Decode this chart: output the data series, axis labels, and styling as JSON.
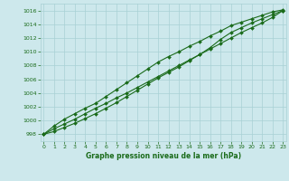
{
  "line1": [
    998.0,
    998.8,
    999.5,
    1000.2,
    1001.0,
    1001.8,
    1002.5,
    1003.3,
    1004.0,
    1004.8,
    1005.6,
    1006.4,
    1007.2,
    1008.0,
    1008.8,
    1009.6,
    1010.4,
    1011.2,
    1012.0,
    1012.8,
    1013.5,
    1014.2,
    1015.0,
    1016.0
  ],
  "line2": [
    998.0,
    999.2,
    1000.2,
    1001.0,
    1001.8,
    1002.5,
    1003.5,
    1004.5,
    1005.5,
    1006.5,
    1007.5,
    1008.5,
    1009.3,
    1010.0,
    1010.8,
    1011.5,
    1012.3,
    1013.0,
    1013.8,
    1014.3,
    1014.8,
    1015.3,
    1015.8,
    1016.1
  ],
  "line3": [
    998.0,
    998.4,
    999.0,
    999.6,
    1000.3,
    1001.0,
    1001.8,
    1002.6,
    1003.5,
    1004.4,
    1005.3,
    1006.2,
    1007.0,
    1007.8,
    1008.7,
    1009.6,
    1010.6,
    1011.8,
    1012.8,
    1013.5,
    1014.2,
    1014.8,
    1015.4,
    1016.0
  ],
  "x": [
    0,
    1,
    2,
    3,
    4,
    5,
    6,
    7,
    8,
    9,
    10,
    11,
    12,
    13,
    14,
    15,
    16,
    17,
    18,
    19,
    20,
    21,
    22,
    23
  ],
  "line_color": "#1a6b1a",
  "bg_color": "#cde8ec",
  "grid_color": "#a8d0d5",
  "ylabel_ticks": [
    998,
    1000,
    1002,
    1004,
    1006,
    1008,
    1010,
    1012,
    1014,
    1016
  ],
  "xlabel": "Graphe pression niveau de la mer (hPa)",
  "ylim": [
    997.0,
    1017.0
  ],
  "xlim": [
    -0.3,
    23.3
  ],
  "fig_width": 3.2,
  "fig_height": 2.0,
  "dpi": 100
}
